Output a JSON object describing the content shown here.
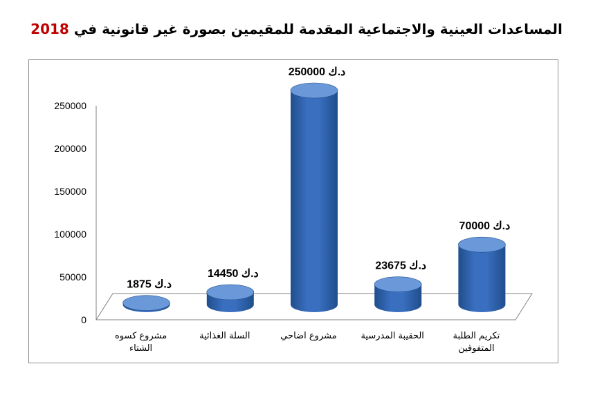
{
  "title": {
    "text": "المساعدات العينية والاجتماعية المقدمة للمقيمين بصورة غير قانونية في",
    "year": "2018"
  },
  "colors": {
    "bar": "#3a6fc0",
    "bar_dark": "#1f4e8c",
    "bar_top": "#6a98d8",
    "year": "#c00000"
  },
  "chart_data": {
    "type": "bar",
    "title": "المساعدات العينية والاجتماعية المقدمة للمقيمين بصورة غير قانونية في 2018",
    "categories": [
      [
        "مشروع كسوه",
        "الشتاء"
      ],
      [
        "السلة الغذائية"
      ],
      [
        "مشروع اضاحي"
      ],
      [
        "الحقيبة المدرسية"
      ],
      [
        "تكريم الطلبة",
        "المتفوقين"
      ]
    ],
    "values": [
      1875,
      14450,
      250000,
      23675,
      70000
    ],
    "data_labels": [
      "1875 د.ك",
      "14450 د.ك",
      "250000 د.ك",
      "23675 د.ك",
      "70000 د.ك"
    ],
    "yticks": [
      "0",
      "50000",
      "100000",
      "150000",
      "200000",
      "250000"
    ],
    "ylim": [
      0,
      250000
    ],
    "grid": false,
    "style": "3d-cylinder"
  }
}
